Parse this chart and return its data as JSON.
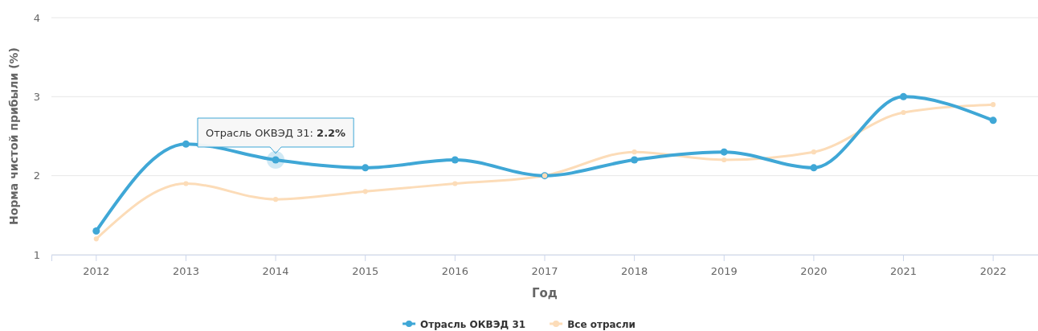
{
  "chart_data": {
    "type": "line",
    "xlabel": "Год",
    "ylabel": "Норма чистой прибыли (%)",
    "categories": [
      "2012",
      "2013",
      "2014",
      "2015",
      "2016",
      "2017",
      "2018",
      "2019",
      "2020",
      "2021",
      "2022"
    ],
    "series": [
      {
        "name": "Отрасль ОКВЭД 31",
        "color": "#3fa7d6",
        "values": [
          1.3,
          2.4,
          2.2,
          2.1,
          2.2,
          2.0,
          2.2,
          2.3,
          2.1,
          3.0,
          2.7
        ]
      },
      {
        "name": "Все отрасли",
        "color": "#fcdcb8",
        "values": [
          1.2,
          1.9,
          1.7,
          1.8,
          1.9,
          2.0,
          2.3,
          2.2,
          2.3,
          2.8,
          2.9
        ]
      }
    ],
    "ylim": [
      1,
      4
    ],
    "yticks": [
      1,
      2,
      3,
      4
    ],
    "grid": "y",
    "legend": "bottom",
    "marker": "circle",
    "line_style": "solid",
    "annotations": [
      {
        "text": "Отрасль ОКВЭД 31: 2.2%",
        "x": "2014",
        "y": 2.2
      }
    ]
  }
}
